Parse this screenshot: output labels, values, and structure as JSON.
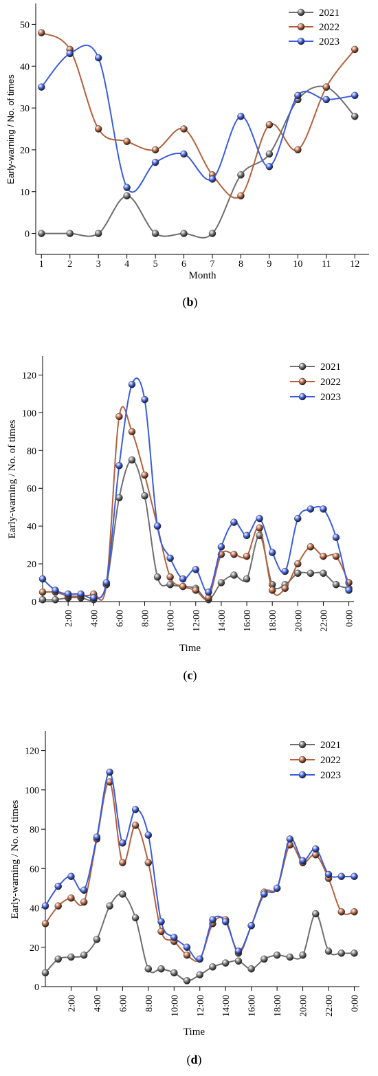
{
  "colors": {
    "2021": "#6e6e6e",
    "2022": "#b5603a",
    "2023": "#3a5be0"
  },
  "chart_data": [
    {
      "panel": "b",
      "caption_letter": "b",
      "type": "line",
      "xlabel": "Month",
      "ylabel": "Early-warning / No. of times",
      "xlim": [
        0.8,
        12.5
      ],
      "ylim": [
        -5,
        55
      ],
      "x": [
        1,
        2,
        3,
        4,
        5,
        6,
        7,
        8,
        9,
        10,
        11,
        12
      ],
      "xticks": [
        "1",
        "2",
        "3",
        "4",
        "5",
        "6",
        "7",
        "8",
        "9",
        "10",
        "11",
        "12"
      ],
      "yticks": [
        0,
        10,
        20,
        30,
        40,
        50
      ],
      "legend_position": "top-right",
      "series": [
        {
          "name": "2021",
          "values": [
            0,
            0,
            0,
            9,
            0,
            0,
            0,
            14,
            19,
            32,
            35,
            28
          ]
        },
        {
          "name": "2022",
          "values": [
            48,
            44,
            25,
            22,
            20,
            25,
            14,
            9,
            26,
            20,
            35,
            44
          ]
        },
        {
          "name": "2023",
          "values": [
            35,
            43,
            42,
            11,
            17,
            19,
            13,
            28,
            16,
            33,
            32,
            33
          ]
        }
      ]
    },
    {
      "panel": "c",
      "caption_letter": "c",
      "type": "line",
      "xlabel": "Time",
      "ylabel": "Early-warning / No. of times",
      "xlim": [
        0,
        24.4
      ],
      "ylim": [
        0,
        130
      ],
      "x": [
        0,
        1,
        2,
        3,
        4,
        5,
        6,
        7,
        8,
        9,
        10,
        11,
        12,
        13,
        14,
        15,
        16,
        17,
        18,
        19,
        20,
        21,
        22,
        23,
        24
      ],
      "xtick_labels": [
        "2:00",
        "4:00",
        "6:00",
        "8:00",
        "10:00",
        "12:00",
        "14:00",
        "16:00",
        "18:00",
        "20:00",
        "22:00",
        "0:00"
      ],
      "xtick_positions": [
        2,
        4,
        6,
        8,
        10,
        12,
        14,
        16,
        18,
        20,
        22,
        24
      ],
      "yticks": [
        0,
        20,
        40,
        60,
        80,
        100,
        120
      ],
      "legend_position": "top-right",
      "series": [
        {
          "name": "2021",
          "values": [
            1,
            1,
            2,
            2,
            1,
            9,
            55,
            75,
            56,
            13,
            9,
            8,
            7,
            1,
            10,
            14,
            12,
            35,
            9,
            9,
            15,
            15,
            15,
            9,
            7
          ]
        },
        {
          "name": "2022",
          "values": [
            5,
            5,
            3,
            3,
            4,
            9,
            98,
            90,
            67,
            40,
            13,
            8,
            6,
            2,
            25,
            25,
            24,
            39,
            6,
            7,
            20,
            29,
            24,
            24,
            10
          ]
        },
        {
          "name": "2023",
          "values": [
            12,
            6,
            4,
            4,
            2,
            10,
            72,
            115,
            107,
            40,
            23,
            12,
            17,
            5,
            29,
            42,
            35,
            44,
            26,
            16,
            44,
            49,
            49,
            34,
            6
          ]
        }
      ]
    },
    {
      "panel": "d",
      "caption_letter": "d",
      "type": "line",
      "xlabel": "Time",
      "ylabel": "Early-warning / No. of times",
      "xlim": [
        0,
        24.4
      ],
      "ylim": [
        0,
        130
      ],
      "x": [
        0,
        1,
        2,
        3,
        4,
        5,
        6,
        7,
        8,
        9,
        10,
        11,
        12,
        13,
        14,
        15,
        16,
        17,
        18,
        19,
        20,
        21,
        22,
        23,
        24
      ],
      "xtick_labels": [
        "2:00",
        "4:00",
        "6:00",
        "8:00",
        "10:00",
        "12:00",
        "14:00",
        "16:00",
        "18:00",
        "20:00",
        "22:00",
        "0:00"
      ],
      "xtick_positions": [
        2,
        4,
        6,
        8,
        10,
        12,
        14,
        16,
        18,
        20,
        22,
        24
      ],
      "yticks": [
        0,
        20,
        40,
        60,
        80,
        100,
        120
      ],
      "legend_position": "top-right",
      "series": [
        {
          "name": "2021",
          "values": [
            7,
            14,
            15,
            16,
            24,
            41,
            47,
            35,
            9,
            9,
            7,
            3,
            6,
            10,
            12,
            13,
            9,
            14,
            16,
            15,
            16,
            37,
            18,
            17,
            17
          ]
        },
        {
          "name": "2022",
          "values": [
            32,
            41,
            45,
            43,
            75,
            104,
            63,
            82,
            63,
            28,
            23,
            16,
            14,
            32,
            34,
            17,
            31,
            48,
            50,
            72,
            63,
            67,
            55,
            38,
            38
          ]
        },
        {
          "name": "2023",
          "values": [
            41,
            51,
            56,
            49,
            76,
            109,
            73,
            90,
            77,
            33,
            25,
            20,
            14,
            34,
            33,
            18,
            31,
            47,
            50,
            75,
            64,
            70,
            57,
            56,
            56
          ]
        }
      ]
    }
  ]
}
